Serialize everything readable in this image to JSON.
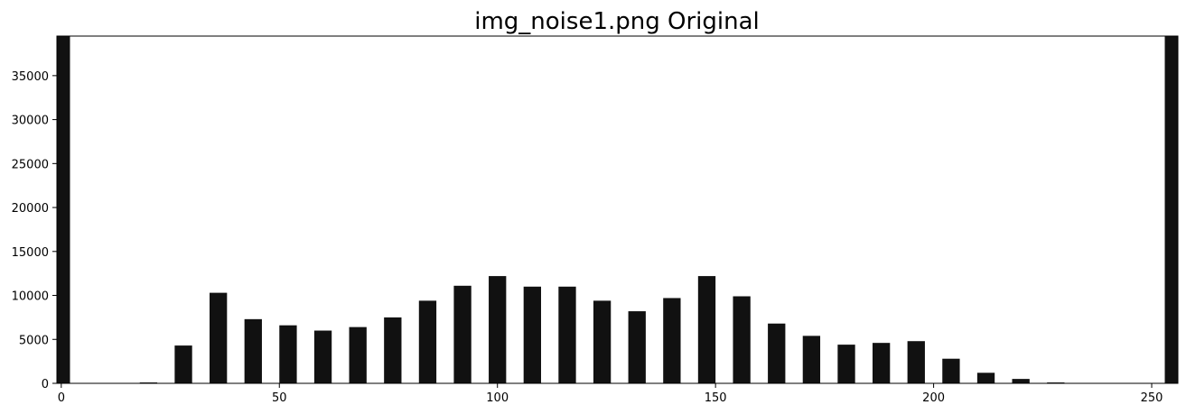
{
  "chart_data": {
    "type": "bar",
    "title": "img_noise1.png Original",
    "xlabel": "",
    "ylabel": "",
    "xlim": [
      -1,
      256
    ],
    "ylim": [
      0,
      39500
    ],
    "xticks": [
      0,
      50,
      100,
      150,
      200,
      250
    ],
    "yticks": [
      0,
      5000,
      10000,
      15000,
      20000,
      25000,
      30000,
      35000
    ],
    "grid": false,
    "bar_color": "#111111",
    "bar_width": 4,
    "x": [
      0,
      20,
      28,
      36,
      44,
      52,
      60,
      68,
      76,
      84,
      92,
      100,
      108,
      116,
      124,
      132,
      140,
      148,
      156,
      164,
      172,
      180,
      188,
      196,
      204,
      212,
      220,
      228,
      255
    ],
    "values": [
      39500,
      100,
      4300,
      10300,
      7300,
      6600,
      6000,
      6400,
      7500,
      9400,
      11100,
      12200,
      11000,
      11000,
      9400,
      8200,
      9700,
      12200,
      9900,
      6800,
      5400,
      4400,
      4600,
      4800,
      2800,
      1200,
      500,
      100,
      39500
    ]
  }
}
